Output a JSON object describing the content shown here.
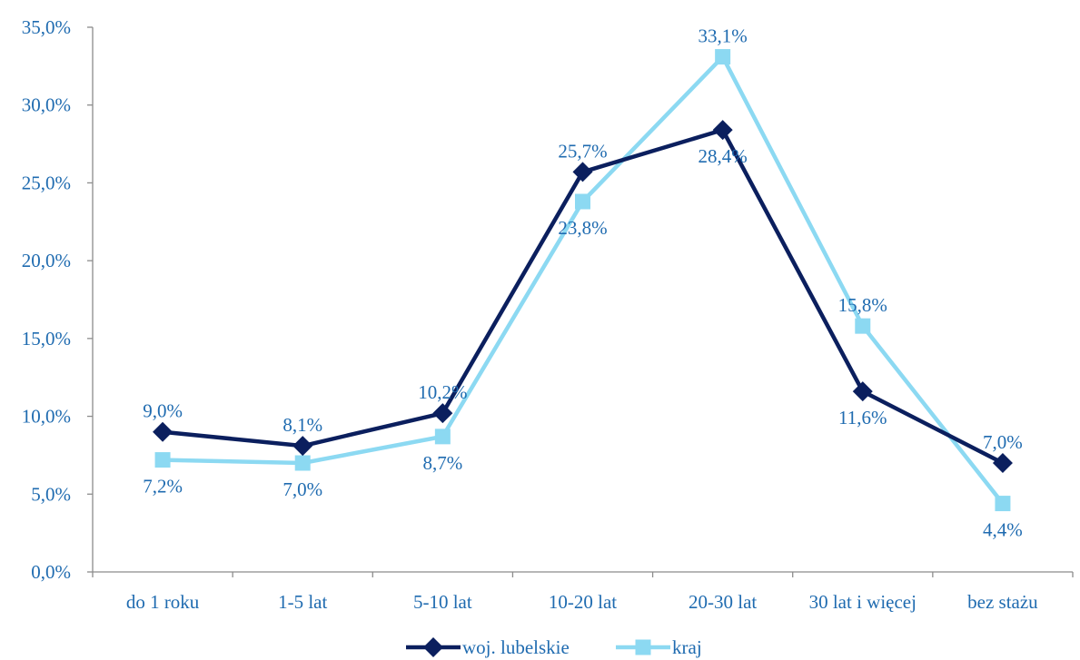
{
  "colors": {
    "text": "#1F6BB0",
    "axis": "#8C8C8C",
    "series_dark": "#0B1F5E",
    "series_light": "#8CD9F2"
  },
  "chart_data": {
    "type": "line",
    "title": "",
    "xlabel": "",
    "ylabel": "",
    "categories": [
      "do 1 roku",
      "1-5 lat",
      "5-10 lat",
      "10-20 lat",
      "20-30 lat",
      "30 lat i więcej",
      "bez stażu"
    ],
    "ylim": [
      0,
      35
    ],
    "y_ticks": [
      0,
      5,
      10,
      15,
      20,
      25,
      30,
      35
    ],
    "y_tick_labels": [
      "0,0%",
      "5,0%",
      "10,0%",
      "15,0%",
      "20,0%",
      "25,0%",
      "30,0%",
      "35,0%"
    ],
    "grid": false,
    "legend_position": "bottom",
    "series": [
      {
        "name": "woj. lubelskie",
        "marker": "diamond",
        "color": "#0B1F5E",
        "values": [
          9.0,
          8.1,
          10.2,
          25.7,
          28.4,
          11.6,
          7.0
        ],
        "labels": [
          "9,0%",
          "8,1%",
          "10,2%",
          "25,7%",
          "28,4%",
          "11,6%",
          "7,0%"
        ],
        "label_positions": [
          "above",
          "above",
          "above",
          "above",
          "below",
          "below",
          "above"
        ]
      },
      {
        "name": "kraj",
        "marker": "square",
        "color": "#8CD9F2",
        "values": [
          7.2,
          7.0,
          8.7,
          23.8,
          33.1,
          15.8,
          4.4
        ],
        "labels": [
          "7,2%",
          "7,0%",
          "8,7%",
          "23,8%",
          "33,1%",
          "15,8%",
          "4,4%"
        ],
        "label_positions": [
          "below",
          "below",
          "below",
          "below",
          "above",
          "above",
          "below"
        ]
      }
    ]
  }
}
